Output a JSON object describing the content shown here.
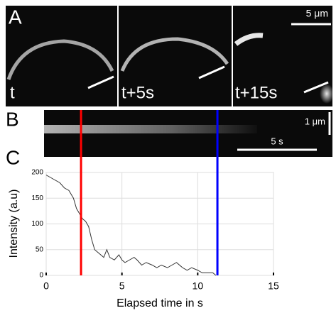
{
  "panels": {
    "a": {
      "label": "A",
      "frames": [
        "t",
        "t+5s",
        "t+15s"
      ],
      "scale_bar": "5 μm"
    },
    "b": {
      "label": "B",
      "scale_bar_y": "1 μm",
      "scale_bar_x": "5 s"
    },
    "c": {
      "label": "C"
    }
  },
  "chart_data": {
    "type": "line",
    "x": [
      0,
      0.3,
      0.6,
      0.9,
      1.2,
      1.5,
      1.8,
      2.0,
      2.2,
      2.4,
      2.6,
      2.8,
      3.0,
      3.2,
      3.4,
      3.6,
      3.8,
      4.0,
      4.2,
      4.5,
      4.8,
      5.0,
      5.2,
      5.5,
      5.8,
      6.0,
      6.3,
      6.6,
      7.0,
      7.3,
      7.6,
      8.0,
      8.3,
      8.6,
      9.0,
      9.3,
      9.6,
      10.0,
      10.3,
      10.6,
      11.0,
      11.2
    ],
    "values": [
      195,
      190,
      185,
      180,
      170,
      165,
      150,
      130,
      120,
      110,
      105,
      95,
      70,
      50,
      45,
      40,
      35,
      50,
      35,
      30,
      40,
      30,
      25,
      30,
      35,
      30,
      20,
      25,
      20,
      15,
      20,
      15,
      20,
      25,
      15,
      10,
      15,
      10,
      5,
      5,
      5,
      0
    ],
    "color": "#333333",
    "xlabel": "Elapsed time in s",
    "ylabel": "Intensity (a.u)",
    "xlim": [
      0,
      15
    ],
    "ylim": [
      0,
      200
    ],
    "xticks": [
      0,
      5,
      10,
      15
    ],
    "yticks": [
      0,
      50,
      100,
      150,
      200
    ],
    "grid": true,
    "markers": [
      {
        "value": 2.3,
        "color": "#ff0000"
      },
      {
        "value": 11.3,
        "color": "#0000ff"
      }
    ]
  }
}
